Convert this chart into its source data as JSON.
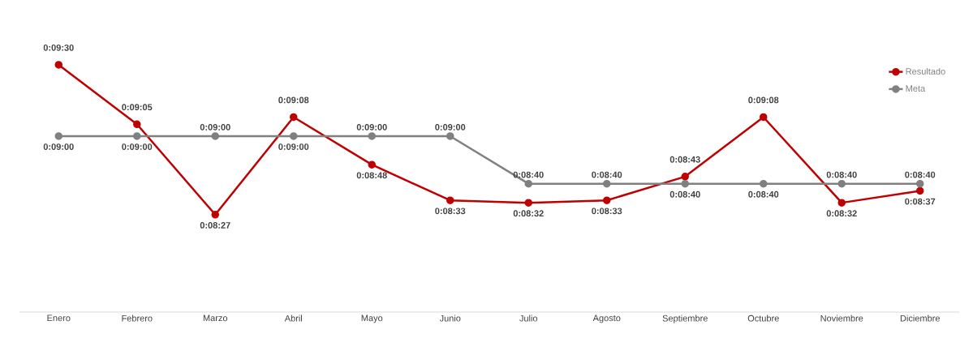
{
  "chart_data": {
    "type": "line",
    "categories": [
      "Enero",
      "Febrero",
      "Marzo",
      "Abril",
      "Mayo",
      "Junio",
      "Julio",
      "Agosto",
      "Septiembre",
      "Octubre",
      "Noviembre",
      "Diciembre"
    ],
    "series": [
      {
        "name": "Resultado",
        "color": "#c00000",
        "values": [
          570,
          545,
          507,
          548,
          528,
          513,
          512,
          513,
          523,
          548,
          512,
          517
        ],
        "value_labels": [
          "0:09:30",
          "0:09:05",
          "0:08:27",
          "0:09:08",
          "0:08:48",
          "0:08:33",
          "0:08:32",
          "0:08:33",
          "0:08:43",
          "0:09:08",
          "0:08:32",
          "0:08:37"
        ]
      },
      {
        "name": "Meta",
        "color": "#808080",
        "values": [
          540,
          540,
          540,
          540,
          540,
          540,
          520,
          520,
          520,
          520,
          520,
          520
        ],
        "value_labels": [
          "0:09:00",
          "0:09:00",
          "0:09:00",
          "0:09:00",
          "0:09:00",
          "0:09:00",
          "0:08:40",
          "0:08:40",
          "0:08:40",
          "0:08:40",
          "0:08:40",
          "0:08:40"
        ]
      }
    ],
    "tick_labels": "x",
    "marker": "circle",
    "line_style": "solid",
    "legend": "top right",
    "grid": false
  }
}
